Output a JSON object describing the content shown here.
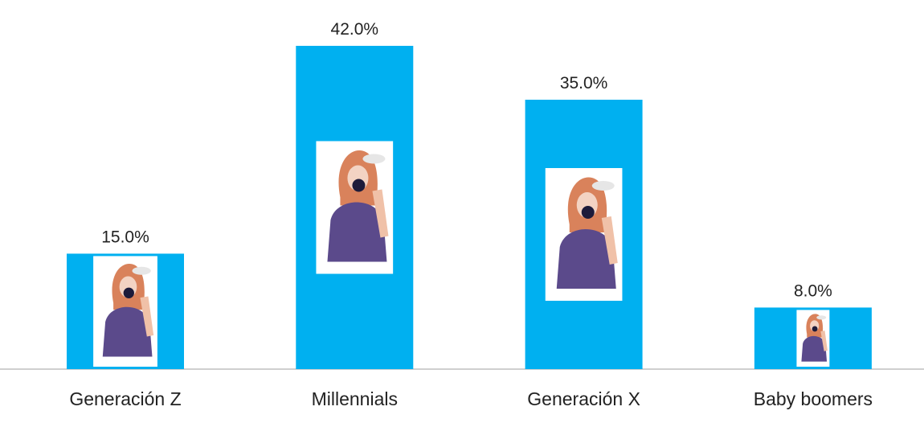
{
  "chart_data": {
    "type": "bar",
    "categories": [
      "Generación Z",
      "Millennials",
      "Generación X",
      "Baby boomers"
    ],
    "values": [
      15,
      42,
      35,
      8
    ],
    "value_labels": [
      "15.0%",
      "42.0%",
      "35.0%",
      "8.0%"
    ],
    "color": "#00b0f0"
  }
}
